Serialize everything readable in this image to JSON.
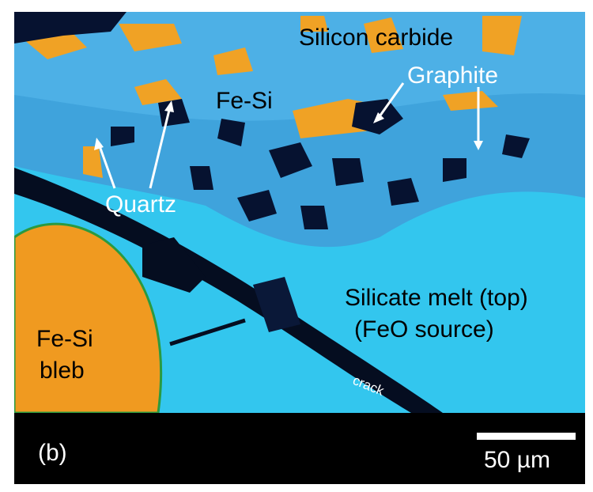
{
  "panel": {
    "label": "(b)"
  },
  "labels": {
    "silicon_carbide": "Silicon carbide",
    "graphite": "Graphite",
    "fe_si_top": "Fe-Si",
    "quartz": "Quartz",
    "silicate_melt": "Silicate melt (top)",
    "feo_source": "(FeO source)",
    "fe_si_bleb": "Fe-Si",
    "bleb": "bleb",
    "crack": "crack"
  },
  "scale_bar": {
    "label": "50 µm"
  }
}
